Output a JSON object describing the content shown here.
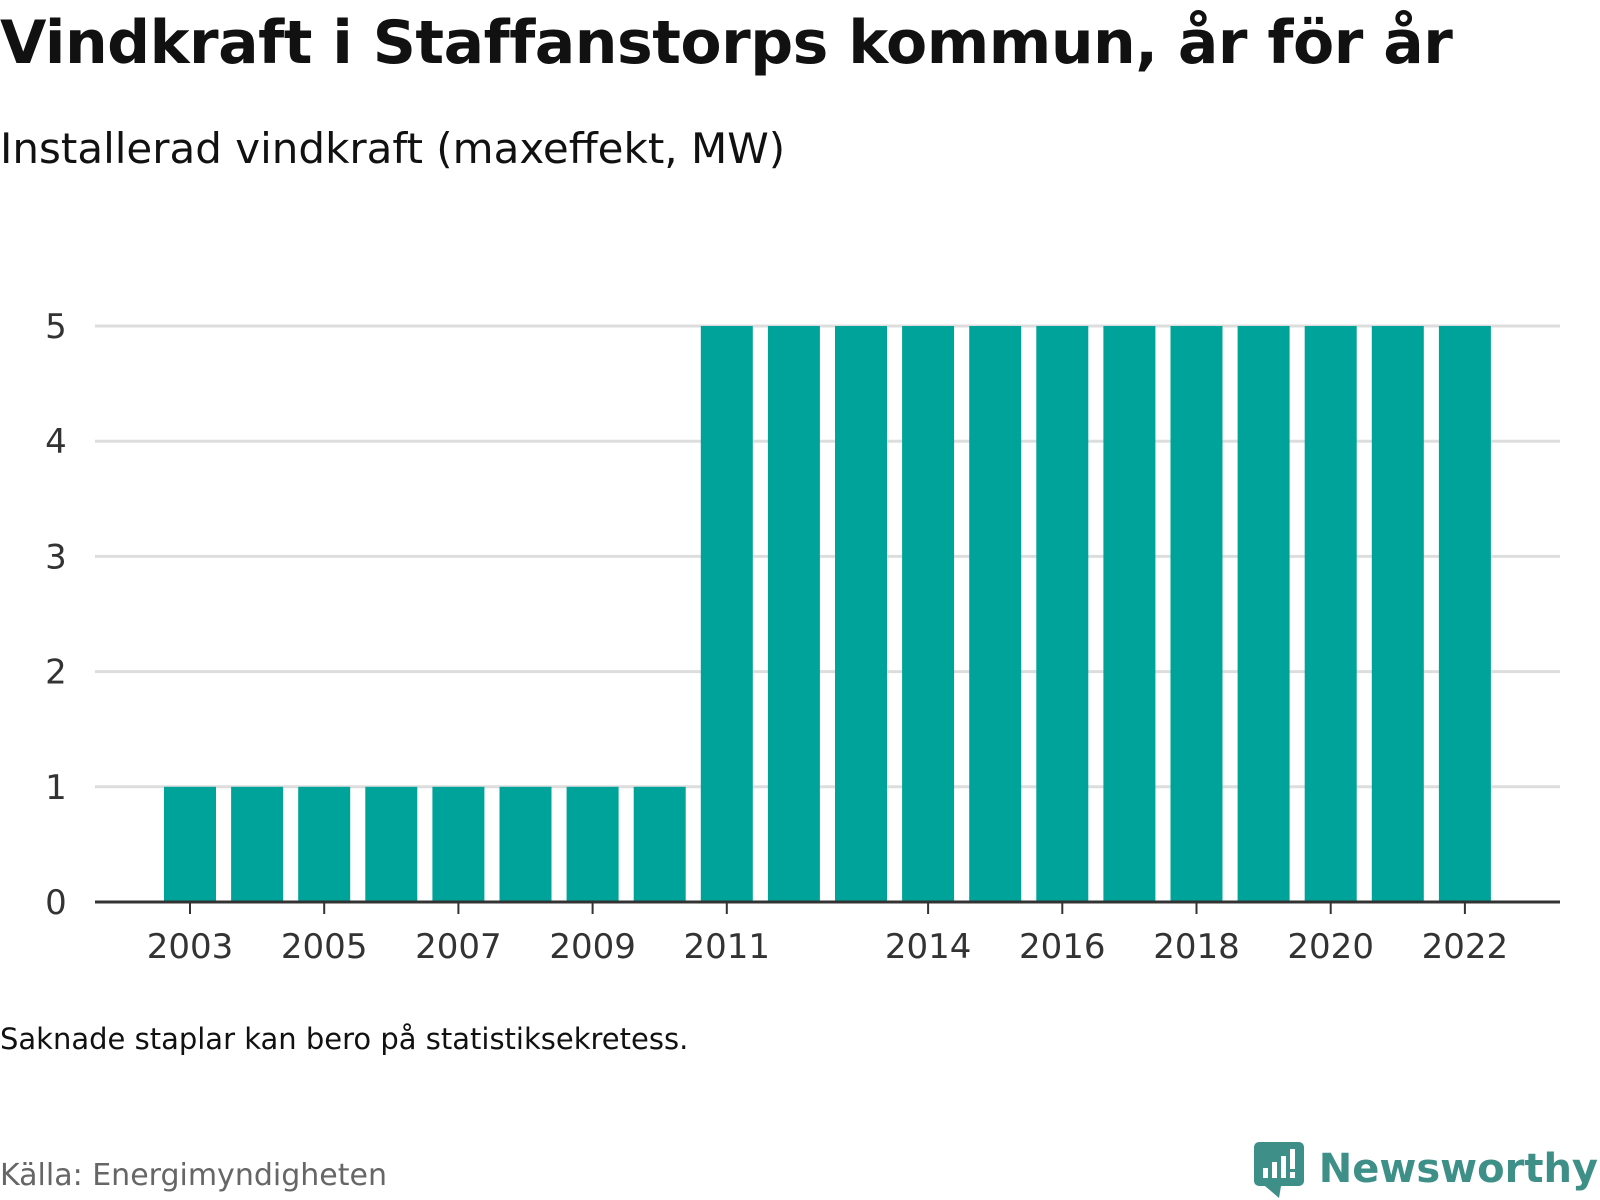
{
  "header": {
    "title": "Vindkraft i Staffanstorps kommun, år för år",
    "subtitle": "Installerad vindkraft (maxeffekt, MW)"
  },
  "footer": {
    "note": "Saknade staplar kan bero på statistiksekretess.",
    "source": "Källa: Energimyndigheten",
    "brand": "Newsworthy"
  },
  "colors": {
    "bar": "#00a399",
    "grid": "#dddddd",
    "axis": "#333333",
    "brand": "#3d8f88"
  },
  "chart_data": {
    "type": "bar",
    "title": "Vindkraft i Staffanstorps kommun, år för år",
    "subtitle": "Installerad vindkraft (maxeffekt, MW)",
    "categories": [
      "2003",
      "2004",
      "2005",
      "2006",
      "2007",
      "2008",
      "2009",
      "2010",
      "2011",
      "2012",
      "2013",
      "2014",
      "2015",
      "2016",
      "2017",
      "2018",
      "2019",
      "2020",
      "2021",
      "2022"
    ],
    "values": [
      1,
      1,
      1,
      1,
      1,
      1,
      1,
      1,
      5,
      5,
      5,
      5,
      5,
      5,
      5,
      5,
      5,
      5,
      5,
      5
    ],
    "x_tick_labels": [
      "2003",
      "2005",
      "2007",
      "2009",
      "2011",
      "2014",
      "2016",
      "2018",
      "2020",
      "2022"
    ],
    "y_ticks": [
      0,
      1,
      2,
      3,
      4,
      5
    ],
    "ylim": [
      0,
      5
    ],
    "grid": true,
    "legend": false
  }
}
